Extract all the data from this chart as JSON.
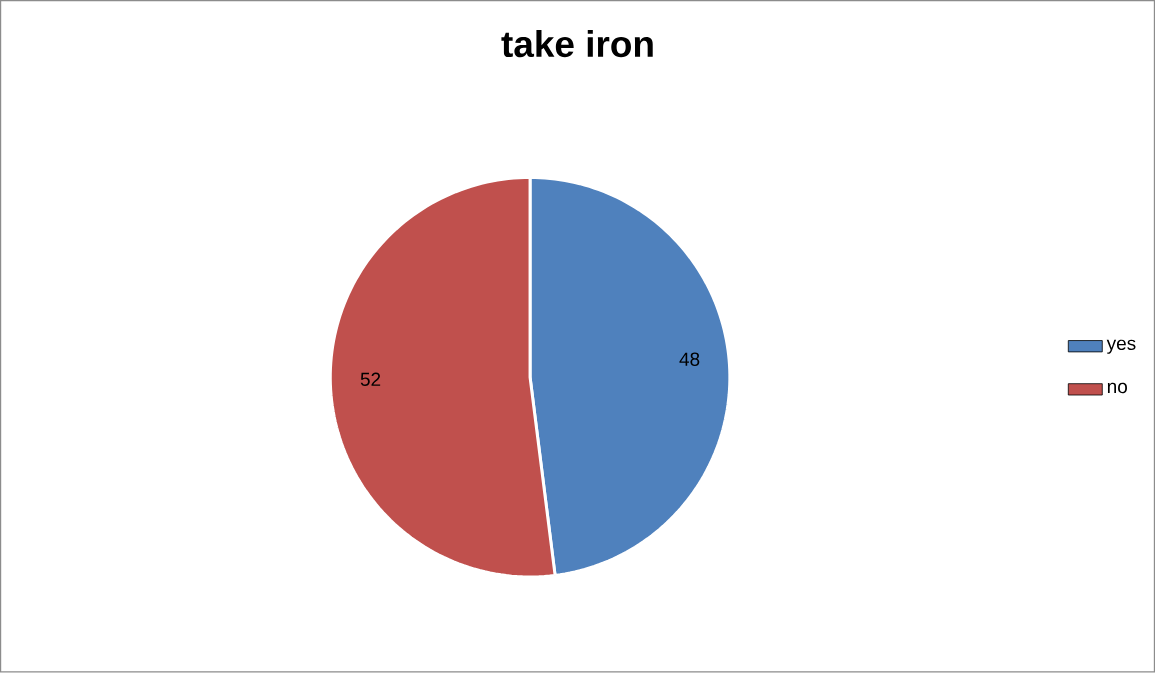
{
  "chart_data": {
    "type": "pie",
    "title": "take iron",
    "categories": [
      "yes",
      "no"
    ],
    "values": [
      48,
      52
    ],
    "colors": [
      "#4f81bd",
      "#c0504d"
    ],
    "data_labels": true,
    "legend": "right"
  }
}
